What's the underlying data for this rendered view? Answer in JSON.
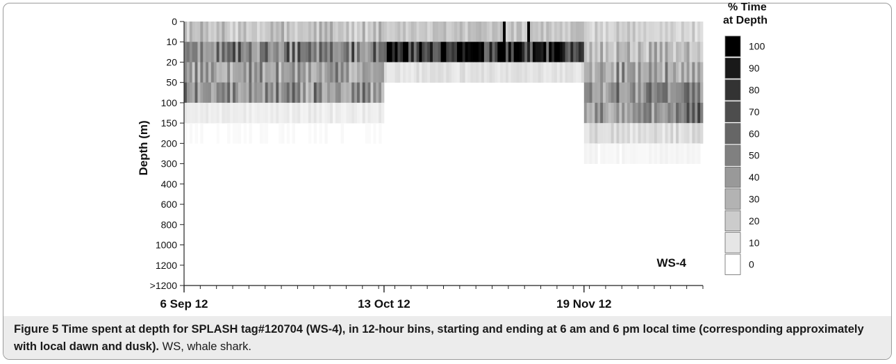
{
  "chart_data": {
    "type": "heatmap",
    "ylabel": "Depth (m)",
    "y_bins": [
      "0",
      "10",
      "20",
      "50",
      "100",
      "150",
      "200",
      "300",
      "400",
      "600",
      "800",
      "1000",
      "1200",
      ">1200"
    ],
    "x_ticks": [
      "6 Sep 12",
      "13 Oct 12",
      "19 Nov 12"
    ],
    "n_time_bins": 192,
    "legend_title": "% Time at Depth",
    "legend_values": [
      100,
      90,
      80,
      70,
      60,
      50,
      40,
      30,
      20,
      10,
      0
    ],
    "color_scale": {
      "low": "#ffffff",
      "high": "#000000"
    },
    "annotation": "WS-4",
    "periods": [
      {
        "start_bin": 0,
        "end_bin": 73,
        "dominant_depths": [
          "10",
          "20",
          "50"
        ],
        "max_percent": 80
      },
      {
        "start_bin": 74,
        "end_bin": 147,
        "dominant_depths": [
          "10"
        ],
        "max_percent": 95
      },
      {
        "start_bin": 148,
        "end_bin": 191,
        "dominant_depths": [
          "20",
          "50",
          "100"
        ],
        "max_percent": 60
      }
    ],
    "peaks": [
      {
        "bin": 118,
        "depth": "0",
        "percent": 100
      },
      {
        "bin": 127,
        "depth": "0",
        "percent": 100
      }
    ]
  },
  "caption": {
    "figure_label": "Figure 5",
    "bold_text": " Time spent at depth for SPLASH tag#120704 (WS-4), in 12-hour bins, starting and ending at 6 am and 6 pm local time (corresponding approximately with local dawn and dusk).",
    "rest_text": " WS, whale shark."
  },
  "colors": {
    "frame": "#9a9a9a",
    "caption_bg": "#ececec",
    "text": "#111111"
  }
}
